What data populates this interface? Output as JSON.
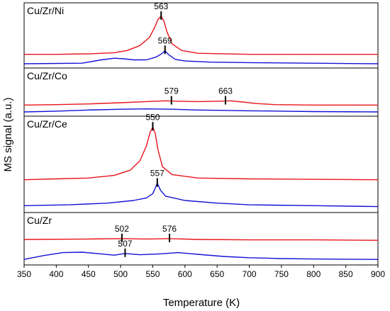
{
  "chart_data": {
    "type": "line",
    "xlabel": "Temperature (K)",
    "ylabel": "MS signal (a.u.)",
    "xlim": [
      350,
      900
    ],
    "x_ticks": [
      350,
      400,
      450,
      500,
      550,
      600,
      650,
      700,
      750,
      800,
      850,
      900
    ],
    "colors": {
      "red": "#e8141b",
      "blue": "#1212d6",
      "axis": "#000000"
    },
    "panels": [
      {
        "label": "Cu/Zr/Ni",
        "series": [
          {
            "color": "red",
            "points": [
              [
                350,
                0.17
              ],
              [
                400,
                0.17
              ],
              [
                450,
                0.18
              ],
              [
                490,
                0.2
              ],
              [
                510,
                0.24
              ],
              [
                530,
                0.33
              ],
              [
                545,
                0.48
              ],
              [
                553,
                0.66
              ],
              [
                558,
                0.8
              ],
              [
                563,
                0.86
              ],
              [
                567,
                0.78
              ],
              [
                572,
                0.58
              ],
              [
                580,
                0.36
              ],
              [
                595,
                0.24
              ],
              [
                620,
                0.19
              ],
              [
                700,
                0.17
              ],
              [
                900,
                0.17
              ]
            ]
          },
          {
            "color": "blue",
            "points": [
              [
                350,
                0.0
              ],
              [
                440,
                0.01
              ],
              [
                470,
                0.07
              ],
              [
                490,
                0.1
              ],
              [
                505,
                0.09
              ],
              [
                520,
                0.07
              ],
              [
                540,
                0.07
              ],
              [
                555,
                0.12
              ],
              [
                565,
                0.19
              ],
              [
                569,
                0.24
              ],
              [
                574,
                0.17
              ],
              [
                585,
                0.08
              ],
              [
                600,
                0.05
              ],
              [
                640,
                0.03
              ],
              [
                700,
                0.02
              ],
              [
                900,
                0.0
              ]
            ]
          }
        ],
        "peaks": [
          {
            "label": "563",
            "x": 563,
            "series": "red"
          },
          {
            "label": "569",
            "x": 569,
            "series": "blue"
          }
        ]
      },
      {
        "label": "Cu/Zr/Co",
        "series": [
          {
            "color": "red",
            "points": [
              [
                350,
                0.18
              ],
              [
                400,
                0.19
              ],
              [
                450,
                0.21
              ],
              [
                500,
                0.24
              ],
              [
                540,
                0.27
              ],
              [
                570,
                0.29
              ],
              [
                590,
                0.28
              ],
              [
                620,
                0.27
              ],
              [
                650,
                0.28
              ],
              [
                670,
                0.29
              ],
              [
                690,
                0.26
              ],
              [
                710,
                0.22
              ],
              [
                740,
                0.19
              ],
              [
                800,
                0.18
              ],
              [
                900,
                0.18
              ]
            ]
          },
          {
            "color": "blue",
            "points": [
              [
                350,
                0.0
              ],
              [
                400,
                0.02
              ],
              [
                450,
                0.05
              ],
              [
                500,
                0.07
              ],
              [
                540,
                0.08
              ],
              [
                580,
                0.07
              ],
              [
                620,
                0.05
              ],
              [
                660,
                0.04
              ],
              [
                700,
                0.03
              ],
              [
                750,
                0.02
              ],
              [
                800,
                0.01
              ],
              [
                900,
                0.0
              ]
            ]
          }
        ],
        "peaks": [
          {
            "label": "579",
            "x": 579,
            "series": "red"
          },
          {
            "label": "663",
            "x": 663,
            "series": "red"
          }
        ]
      },
      {
        "label": "Cu/Zr/Ce",
        "series": [
          {
            "color": "red",
            "points": [
              [
                350,
                0.33
              ],
              [
                400,
                0.34
              ],
              [
                450,
                0.35
              ],
              [
                490,
                0.38
              ],
              [
                515,
                0.44
              ],
              [
                530,
                0.55
              ],
              [
                540,
                0.72
              ],
              [
                546,
                0.88
              ],
              [
                550,
                0.94
              ],
              [
                554,
                0.86
              ],
              [
                558,
                0.68
              ],
              [
                565,
                0.48
              ],
              [
                580,
                0.39
              ],
              [
                620,
                0.35
              ],
              [
                700,
                0.34
              ],
              [
                900,
                0.33
              ]
            ]
          },
          {
            "color": "blue",
            "points": [
              [
                350,
                0.03
              ],
              [
                420,
                0.04
              ],
              [
                480,
                0.06
              ],
              [
                520,
                0.09
              ],
              [
                540,
                0.12
              ],
              [
                550,
                0.17
              ],
              [
                557,
                0.29
              ],
              [
                562,
                0.21
              ],
              [
                570,
                0.14
              ],
              [
                600,
                0.09
              ],
              [
                650,
                0.06
              ],
              [
                700,
                0.04
              ],
              [
                800,
                0.03
              ],
              [
                900,
                0.02
              ]
            ]
          }
        ],
        "peaks": [
          {
            "label": "550",
            "x": 550,
            "series": "red"
          },
          {
            "label": "557",
            "x": 557,
            "series": "blue"
          }
        ]
      },
      {
        "label": "Cu/Zr",
        "series": [
          {
            "color": "red",
            "points": [
              [
                350,
                0.5
              ],
              [
                450,
                0.51
              ],
              [
                502,
                0.52
              ],
              [
                540,
                0.51
              ],
              [
                576,
                0.52
              ],
              [
                620,
                0.5
              ],
              [
                700,
                0.49
              ],
              [
                800,
                0.49
              ],
              [
                900,
                0.48
              ]
            ]
          },
          {
            "color": "blue",
            "points": [
              [
                350,
                0.03
              ],
              [
                380,
                0.12
              ],
              [
                410,
                0.19
              ],
              [
                440,
                0.2
              ],
              [
                470,
                0.16
              ],
              [
                490,
                0.13
              ],
              [
                507,
                0.17
              ],
              [
                530,
                0.14
              ],
              [
                560,
                0.16
              ],
              [
                590,
                0.19
              ],
              [
                620,
                0.15
              ],
              [
                660,
                0.1
              ],
              [
                700,
                0.07
              ],
              [
                750,
                0.05
              ],
              [
                800,
                0.04
              ],
              [
                900,
                0.03
              ]
            ]
          }
        ],
        "peaks": [
          {
            "label": "502",
            "x": 502,
            "series": "red"
          },
          {
            "label": "576",
            "x": 576,
            "series": "red"
          },
          {
            "label": "507",
            "x": 507,
            "series": "blue"
          }
        ]
      }
    ]
  }
}
